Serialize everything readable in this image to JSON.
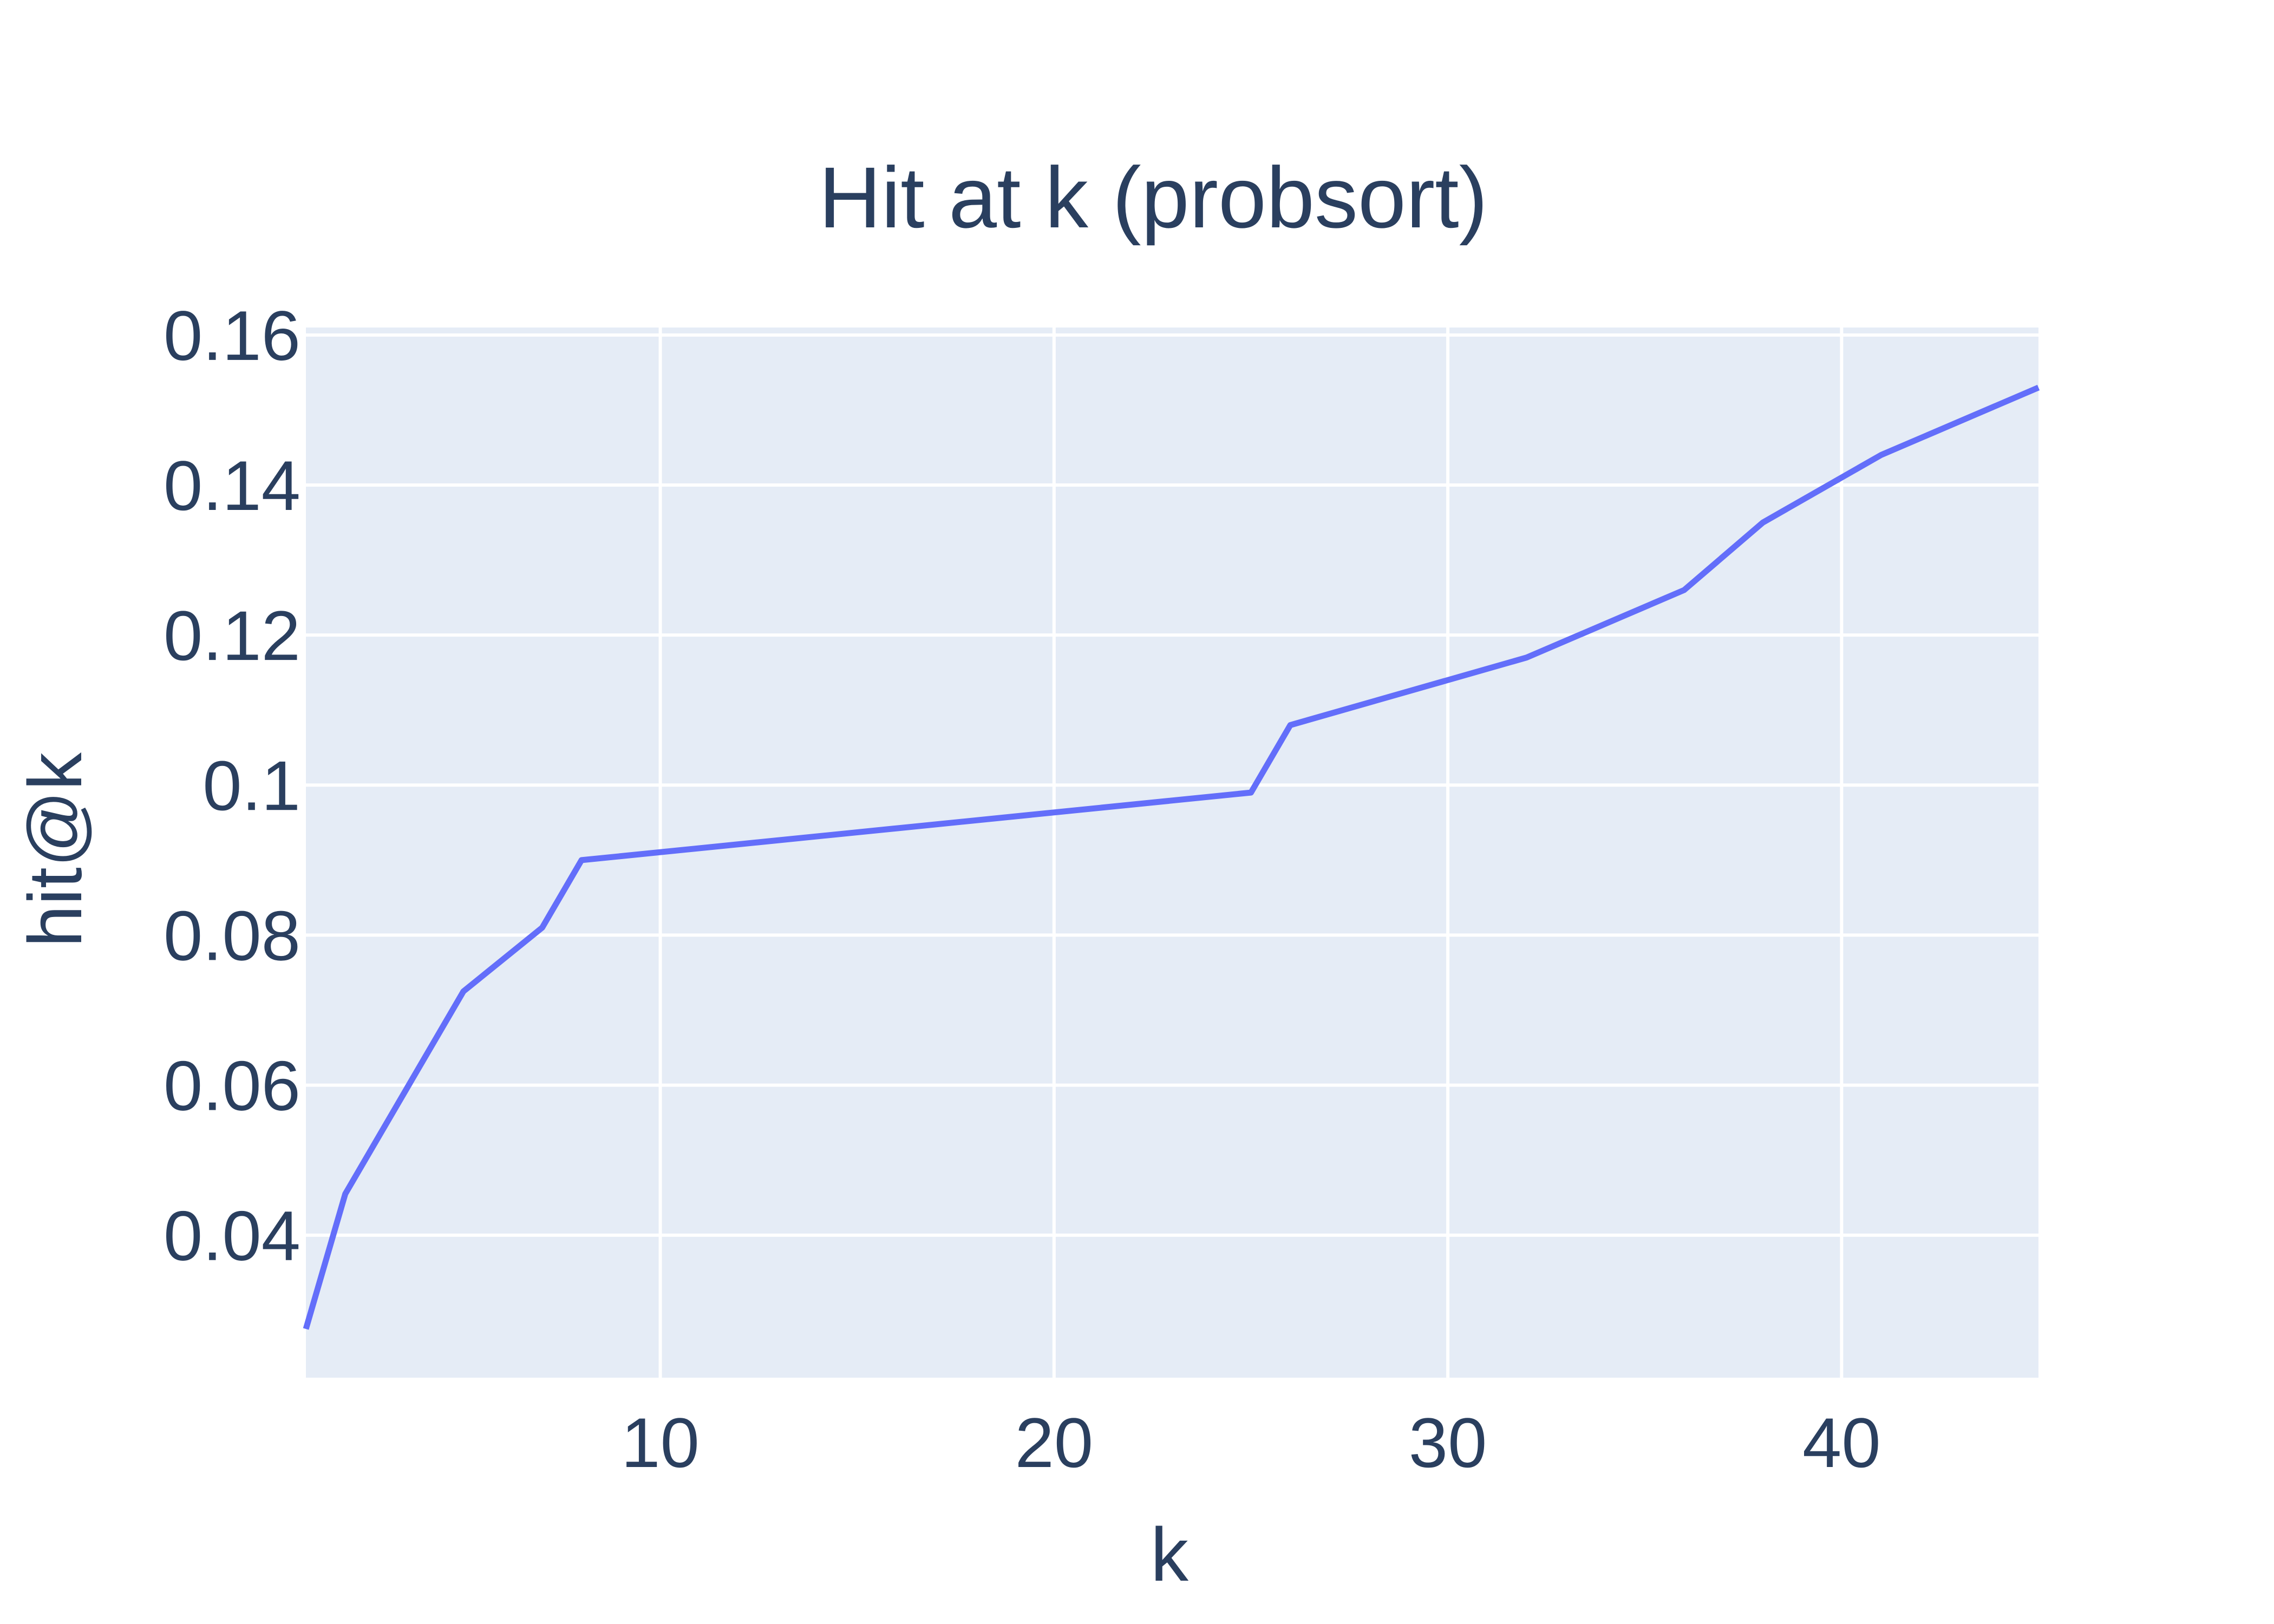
{
  "chart_data": {
    "type": "line",
    "title": "Hit at k (probsort)",
    "xlabel": "k",
    "ylabel": "hit@k",
    "xlim": [
      1,
      45
    ],
    "ylim": [
      0.021,
      0.161
    ],
    "x_ticks": [
      10,
      20,
      30,
      40
    ],
    "x_tick_labels": [
      "10",
      "20",
      "30",
      "40"
    ],
    "y_ticks": [
      0.04,
      0.06,
      0.08,
      0.1,
      0.12,
      0.14,
      0.16
    ],
    "y_tick_labels": [
      "0.04",
      "0.06",
      "0.08",
      "0.1",
      "0.12",
      "0.14",
      "0.16"
    ],
    "grid": true,
    "series": [
      {
        "x": [
          1,
          2,
          5,
          7,
          8,
          25,
          26,
          32,
          36,
          38,
          41,
          45
        ],
        "values": [
          0.0275,
          0.0455,
          0.0725,
          0.081,
          0.09,
          0.099,
          0.108,
          0.117,
          0.126,
          0.135,
          0.144,
          0.153
        ],
        "color": "#636efa"
      }
    ]
  },
  "colors": {
    "plot_background": "#e5ecf6",
    "grid": "#ffffff",
    "text": "#2a3f5f",
    "line": "#636efa"
  }
}
